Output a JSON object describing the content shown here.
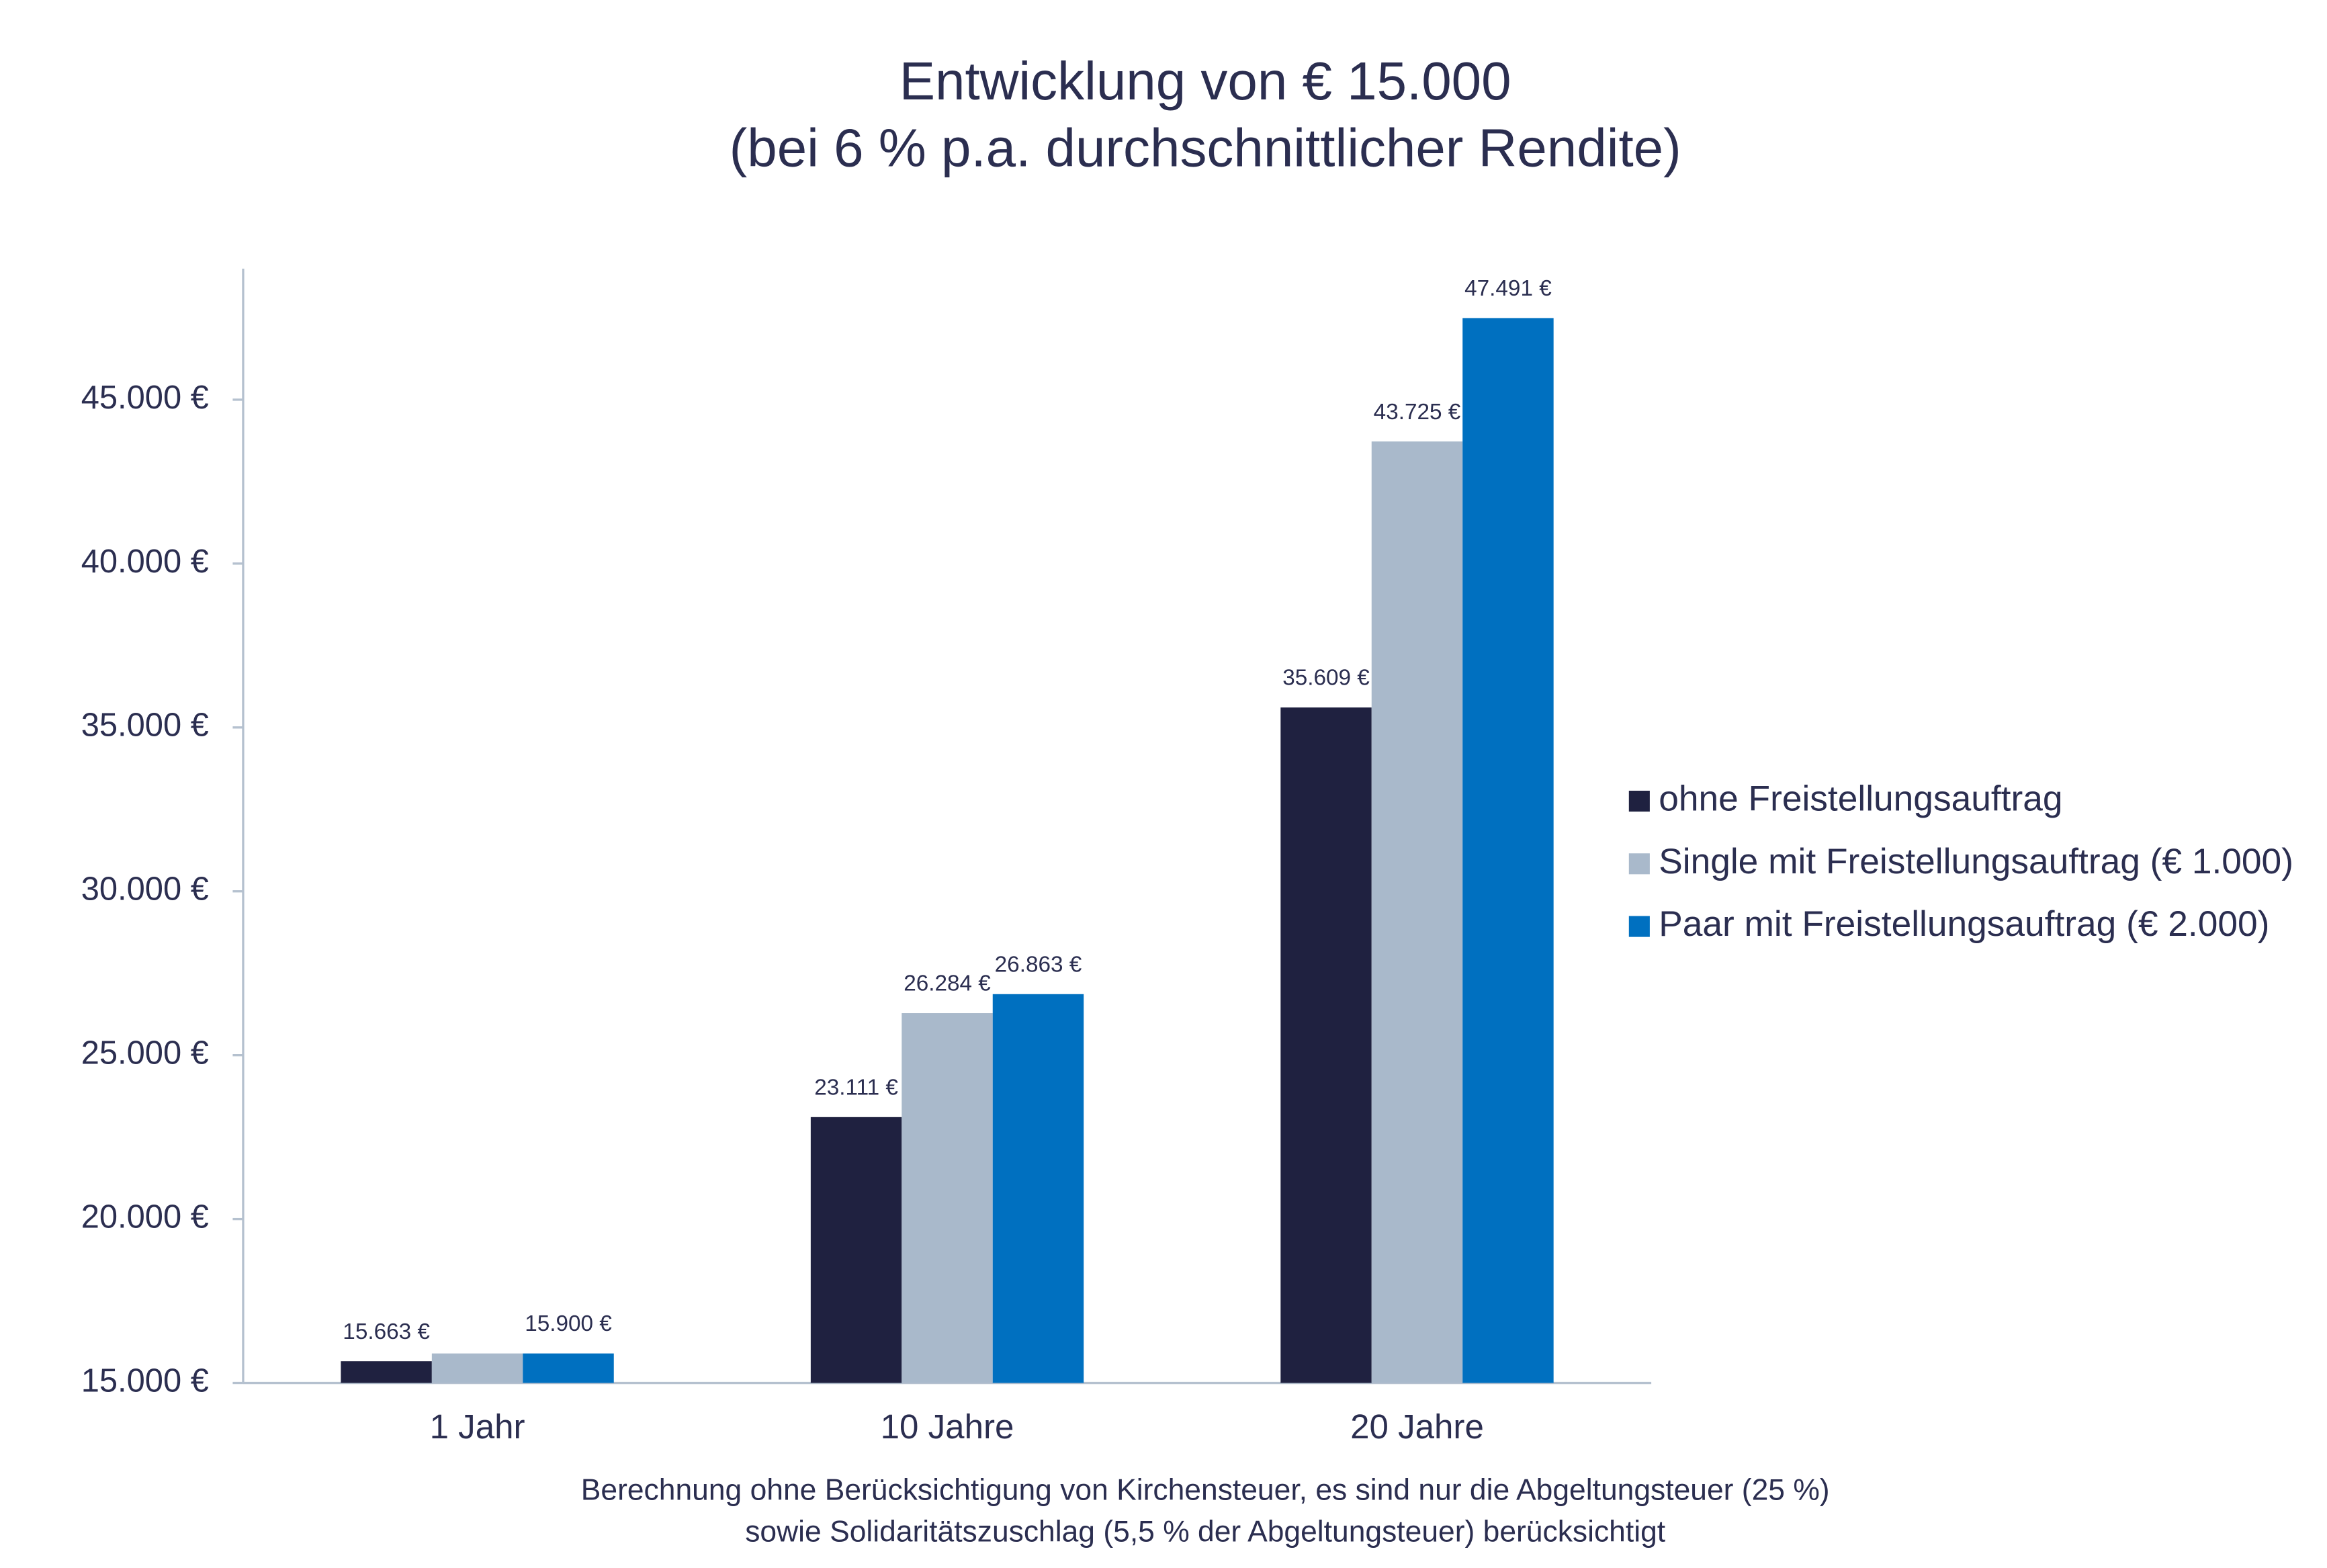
{
  "chart_data": {
    "type": "bar",
    "title": "Entwicklung von € 15.000",
    "subtitle": "(bei 6 % p.a. durchschnittlicher Rendite)",
    "footnote": [
      "Berechnung ohne Berücksichtigung von Kirchensteuer, es sind nur die Abgeltungsteuer (25 %)",
      "sowie Solidaritätszuschlag (5,5 % der Abgeltungsteuer) berücksichtigt"
    ],
    "categories": [
      "1 Jahr",
      "10 Jahre",
      "20 Jahre"
    ],
    "series": [
      {
        "name": "ohne Freistellungsauftrag",
        "color": "#1f2140",
        "values": [
          15663,
          23111,
          35609
        ],
        "value_labels": [
          "15.663 €",
          "23.111 €",
          "35.609 €"
        ]
      },
      {
        "name": "Single mit Freistellungsauftrag (€ 1.000)",
        "color": "#a9b9cb",
        "values": [
          15900,
          26284,
          43725
        ],
        "value_labels": [
          null,
          "26.284 €",
          "43.725 €"
        ]
      },
      {
        "name": "Paar mit Freistellungsauftrag (€ 2.000)",
        "color": "#0070c0",
        "values": [
          15900,
          26863,
          47491
        ],
        "value_labels": [
          "15.900 €",
          "26.863 €",
          "47.491 €"
        ]
      }
    ],
    "ylim": [
      15000,
      49000
    ],
    "yticks": [
      {
        "value": 15000,
        "label": "15.000 €"
      },
      {
        "value": 20000,
        "label": "20.000 €"
      },
      {
        "value": 25000,
        "label": "25.000 €"
      },
      {
        "value": 30000,
        "label": "30.000 €"
      },
      {
        "value": 35000,
        "label": "35.000 €"
      },
      {
        "value": 40000,
        "label": "40.000 €"
      },
      {
        "value": 45000,
        "label": "45.000 €"
      }
    ],
    "grid": false,
    "legend": "right"
  }
}
